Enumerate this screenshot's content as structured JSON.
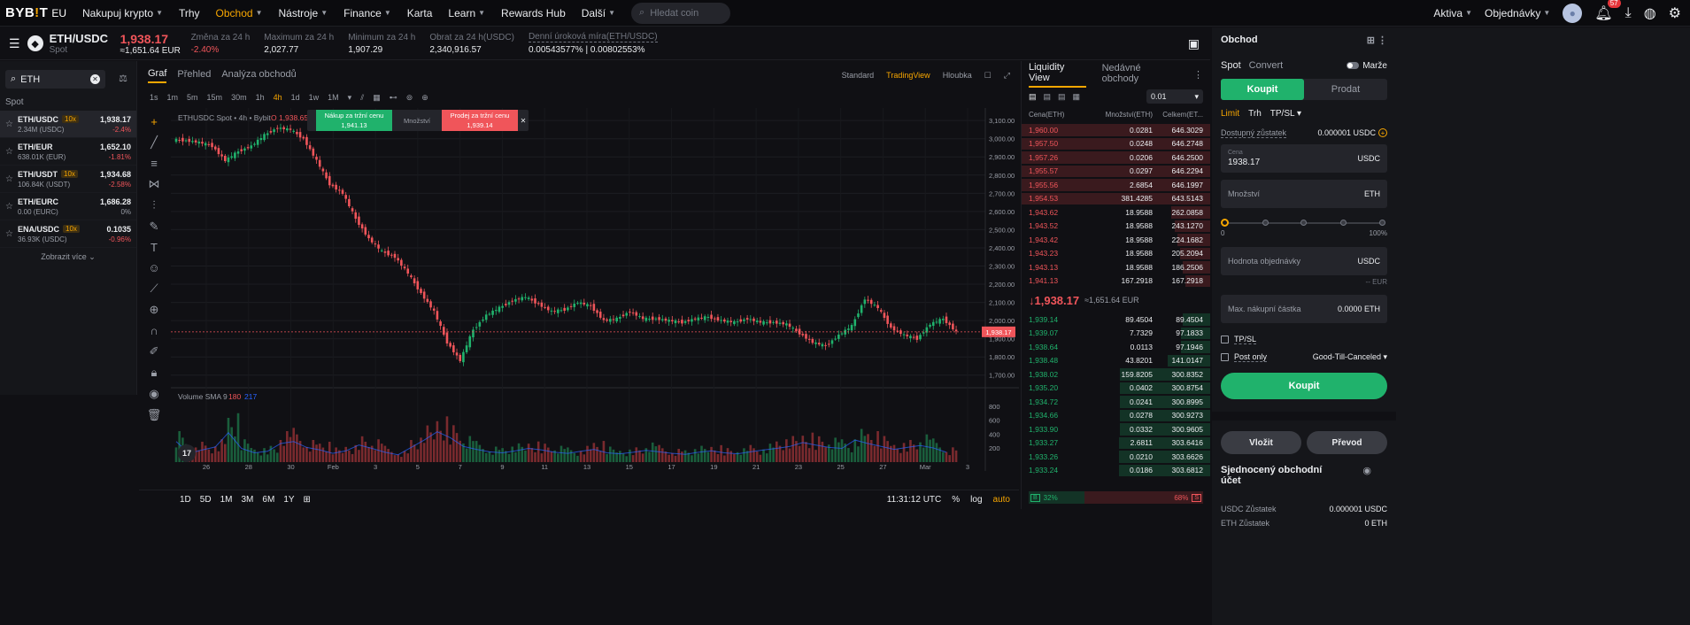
{
  "nav": {
    "logo": "BYB",
    "logo_bar": "!",
    "logo_tail": "T",
    "logo_region": "EU",
    "items": [
      "Nakupuj krypto",
      "Trhy",
      "Obchod",
      "Nástroje",
      "Finance",
      "Karta",
      "Learn",
      "Rewards Hub",
      "Další"
    ],
    "search_placeholder": "Hledat coin",
    "assets": "Aktiva",
    "orders": "Objednávky",
    "notif_count": "57"
  },
  "ticker": {
    "pair": "ETH/USDC",
    "type": "Spot",
    "price": "1,938.17",
    "price_fiat": "≈1,651.64 EUR",
    "change_label": "Změna za 24 h",
    "change_val": "-2.40%",
    "high_label": "Maximum za 24 h",
    "high_val": "2,027.77",
    "low_label": "Minimum za 24 h",
    "low_val": "1,907.29",
    "vol_label": "Obrat za 24 h(USDC)",
    "vol_val": "2,340,916.57",
    "rate_label": "Denní úroková míra(ETH/USDC)",
    "rate_val": "0.00543577% | 0.00802553%"
  },
  "left": {
    "search_value": "ETH",
    "section": "Spot",
    "markets": [
      {
        "name": "ETH/USDC",
        "lev": "10x",
        "vol": "2.34M (USDC)",
        "price": "1,938.17",
        "chg": "-2.4%",
        "dir": "red"
      },
      {
        "name": "ETH/EUR",
        "lev": "",
        "vol": "638.01K (EUR)",
        "price": "1,652.10",
        "chg": "-1.81%",
        "dir": "red"
      },
      {
        "name": "ETH/USDT",
        "lev": "10x",
        "vol": "106.84K (USDT)",
        "price": "1,934.68",
        "chg": "-2.58%",
        "dir": "red"
      },
      {
        "name": "ETH/EURC",
        "lev": "",
        "vol": "0.00 (EURC)",
        "price": "1,686.28",
        "chg": "0%",
        "dir": "gray"
      },
      {
        "name": "ENA/USDC",
        "lev": "10x",
        "vol": "36.93K (USDC)",
        "price": "0.1035",
        "chg": "-0.96%",
        "dir": "red"
      }
    ],
    "show_more": "Zobrazit více"
  },
  "chart": {
    "tabs": [
      "Graf",
      "Přehled",
      "Analýza obchodů"
    ],
    "views": [
      "Standard",
      "TradingView",
      "Hloubka"
    ],
    "intervals": [
      "1s",
      "1m",
      "5m",
      "15m",
      "30m",
      "1h",
      "4h",
      "1d",
      "1w",
      "1M"
    ],
    "legend": "ETHUSDC Spot • 4h • Bybit",
    "legend_open": "O 1,938.65",
    "buy_label": "Nákup za tržní cenu",
    "buy_price": "1,941.13",
    "qty_label": "Množství",
    "sell_label": "Prodej za tržní cenu",
    "sell_price": "1,939.14",
    "volume_label": "Volume SMA 9",
    "volume_v1": "180",
    "volume_v2": "217",
    "last_price_tag": "1,938.17",
    "ranges": [
      "1D",
      "5D",
      "1M",
      "3M",
      "6M",
      "1Y"
    ],
    "time": "11:31:12 UTC",
    "pct": "%",
    "log": "log",
    "auto": "auto"
  },
  "chart_data": {
    "type": "line",
    "title": "",
    "ylabel": "",
    "xlabel": "",
    "ylim": [
      1650,
      3130
    ],
    "y_ticks": [
      "3,100.00",
      "3,000.00",
      "2,900.00",
      "2,800.00",
      "2,700.00",
      "2,600.00",
      "2,500.00",
      "2,400.00",
      "2,300.00",
      "2,200.00",
      "2,100.00",
      "2,000.00",
      "1,900.00",
      "1,800.00",
      "1,700.00"
    ],
    "y_tick_values": [
      3100,
      3000,
      2900,
      2800,
      2700,
      2600,
      2500,
      2400,
      2300,
      2200,
      2100,
      2000,
      1900,
      1800,
      1700
    ],
    "x_ticks": [
      "26",
      "28",
      "30",
      "Feb",
      "3",
      "5",
      "7",
      "9",
      "11",
      "13",
      "15",
      "17",
      "19",
      "21",
      "23",
      "25",
      "27",
      "Mar",
      "3"
    ],
    "vol_ticks": [
      "800",
      "600",
      "400",
      "200"
    ],
    "vol_tick_values": [
      800,
      600,
      400,
      200
    ],
    "vol_ylim": [
      0,
      950
    ],
    "x": [
      0,
      4,
      8,
      12,
      16,
      20,
      24,
      28,
      32,
      36,
      40,
      44,
      48,
      52,
      56,
      60,
      64,
      68,
      72,
      76,
      80,
      84,
      88,
      92,
      96,
      100,
      104,
      108,
      112,
      116,
      120,
      124,
      128,
      132,
      136,
      140,
      144,
      148,
      152,
      156,
      160,
      164,
      168,
      172,
      176,
      180,
      184,
      188,
      192,
      196,
      200,
      204,
      208,
      212,
      216,
      220,
      224,
      228,
      232,
      236
    ],
    "series": [
      {
        "name": "",
        "values": [
          2990,
          2980,
          2960,
          2880,
          2930,
          2960,
          3020,
          3060,
          3050,
          3000,
          2880,
          2750,
          2700,
          2560,
          2450,
          2380,
          2350,
          2260,
          2150,
          2050,
          1880,
          1780,
          1950,
          2030,
          2070,
          2110,
          2130,
          2090,
          2050,
          2060,
          2100,
          2080,
          2000,
          2010,
          2050,
          2010,
          2010,
          2000,
          1990,
          2010,
          2020,
          2000,
          1990,
          2010,
          1990,
          1990,
          1980,
          1930,
          1880,
          1860,
          1920,
          1970,
          2120,
          2070,
          1960,
          1920,
          1900,
          1980,
          2010,
          1938
        ]
      }
    ],
    "volume": [
      420,
      180,
      250,
      310,
      600,
      280,
      190,
      220,
      380,
      420,
      300,
      250,
      180,
      230,
      350,
      280,
      200,
      150,
      300,
      450,
      620,
      500,
      320,
      260,
      210,
      190,
      230,
      280,
      250,
      200,
      180,
      220,
      260,
      190,
      170,
      200,
      240,
      210,
      180,
      160,
      200,
      230,
      190,
      170,
      210,
      250,
      280,
      320,
      400,
      350,
      300,
      280,
      450,
      380,
      320,
      260,
      300,
      340,
      290,
      200
    ]
  },
  "orderbook": {
    "tabs": [
      "Liquidity View",
      "Nedávné obchody"
    ],
    "step": "0.01",
    "col_price": "Cena(ETH)",
    "col_qty": "Množství(ETH)",
    "col_total": "Celkem(ET...",
    "asks": [
      {
        "p": "1,960.00",
        "q": "0.0281",
        "t": "646.3029",
        "hl": true,
        "d": 1.0
      },
      {
        "p": "1,957.50",
        "q": "0.0248",
        "t": "646.2748",
        "hl": true,
        "d": 1.0
      },
      {
        "p": "1,957.26",
        "q": "0.0206",
        "t": "646.2500",
        "hl": true,
        "d": 1.0
      },
      {
        "p": "1,955.57",
        "q": "0.0297",
        "t": "646.2294",
        "hl": true,
        "d": 1.0
      },
      {
        "p": "1,955.56",
        "q": "2.6854",
        "t": "646.1997",
        "hl": true,
        "d": 1.0
      },
      {
        "p": "1,954.53",
        "q": "381.4285",
        "t": "643.5143",
        "hl": true,
        "d": 1.0
      },
      {
        "p": "1,943.62",
        "q": "18.9588",
        "t": "262.0858",
        "hl": false,
        "d": 0.41
      },
      {
        "p": "1,943.52",
        "q": "18.9588",
        "t": "243.1270",
        "hl": false,
        "d": 0.38
      },
      {
        "p": "1,943.42",
        "q": "18.9588",
        "t": "224.1682",
        "hl": false,
        "d": 0.35
      },
      {
        "p": "1,943.23",
        "q": "18.9588",
        "t": "205.2094",
        "hl": false,
        "d": 0.32
      },
      {
        "p": "1,943.13",
        "q": "18.9588",
        "t": "186.2506",
        "hl": false,
        "d": 0.29
      },
      {
        "p": "1,941.13",
        "q": "167.2918",
        "t": "167.2918",
        "hl": false,
        "d": 0.26
      }
    ],
    "mid_price": "1,938.17",
    "mid_fiat": "≈1,651.64 EUR",
    "bids": [
      {
        "p": "1,939.14",
        "q": "89.4504",
        "t": "89.4504",
        "d": 0.29
      },
      {
        "p": "1,939.07",
        "q": "7.7329",
        "t": "97.1833",
        "d": 0.31
      },
      {
        "p": "1,938.64",
        "q": "0.0113",
        "t": "97.1946",
        "d": 0.31
      },
      {
        "p": "1,938.48",
        "q": "43.8201",
        "t": "141.0147",
        "d": 0.45
      },
      {
        "p": "1,938.02",
        "q": "159.8205",
        "t": "300.8352",
        "d": 0.96
      },
      {
        "p": "1,935.20",
        "q": "0.0402",
        "t": "300.8754",
        "d": 0.96
      },
      {
        "p": "1,934.72",
        "q": "0.0241",
        "t": "300.8995",
        "d": 0.96
      },
      {
        "p": "1,934.66",
        "q": "0.0278",
        "t": "300.9273",
        "d": 0.96
      },
      {
        "p": "1,933.90",
        "q": "0.0332",
        "t": "300.9605",
        "d": 0.96
      },
      {
        "p": "1,933.27",
        "q": "2.6811",
        "t": "303.6416",
        "d": 0.97
      },
      {
        "p": "1,933.26",
        "q": "0.0210",
        "t": "303.6626",
        "d": 0.97
      },
      {
        "p": "1,933.24",
        "q": "0.0186",
        "t": "303.6812",
        "d": 0.97
      }
    ],
    "buy_ratio": "32%",
    "buy_ratio_value": 0.32,
    "sell_ratio": "68%",
    "b_letter": "B",
    "s_letter": "S"
  },
  "order": {
    "title": "Obchod",
    "spot": "Spot",
    "convert": "Convert",
    "margin": "Marže",
    "buy_tab": "Koupit",
    "sell_tab": "Prodat",
    "types": [
      "Limit",
      "Trh",
      "TP/SL"
    ],
    "avail_label": "Dostupný zůstatek",
    "avail_val": "0.000001 USDC",
    "price_label": "Cena",
    "price_val": "1938.17",
    "price_unit": "USDC",
    "qty_label": "Množství",
    "qty_unit": "ETH",
    "slider_min": "0",
    "slider_max": "100%",
    "value_label": "Hodnota objednávky",
    "value_unit": "USDC",
    "eur": "-- EUR",
    "max_label": "Max. nákupní částka",
    "max_val": "0.0000 ETH",
    "tpsl": "TP/SL",
    "post_only": "Post only",
    "gtc": "Good-Till-Canceled",
    "buy_button": "Koupit",
    "deposit": "Vložit",
    "transfer": "Převod",
    "unified": "Sjednocený obchodní účet",
    "usdc_bal_label": "USDC Zůstatek",
    "usdc_bal": "0.000001 USDC",
    "eth_bal_label": "ETH Zůstatek",
    "eth_bal": "0 ETH"
  }
}
